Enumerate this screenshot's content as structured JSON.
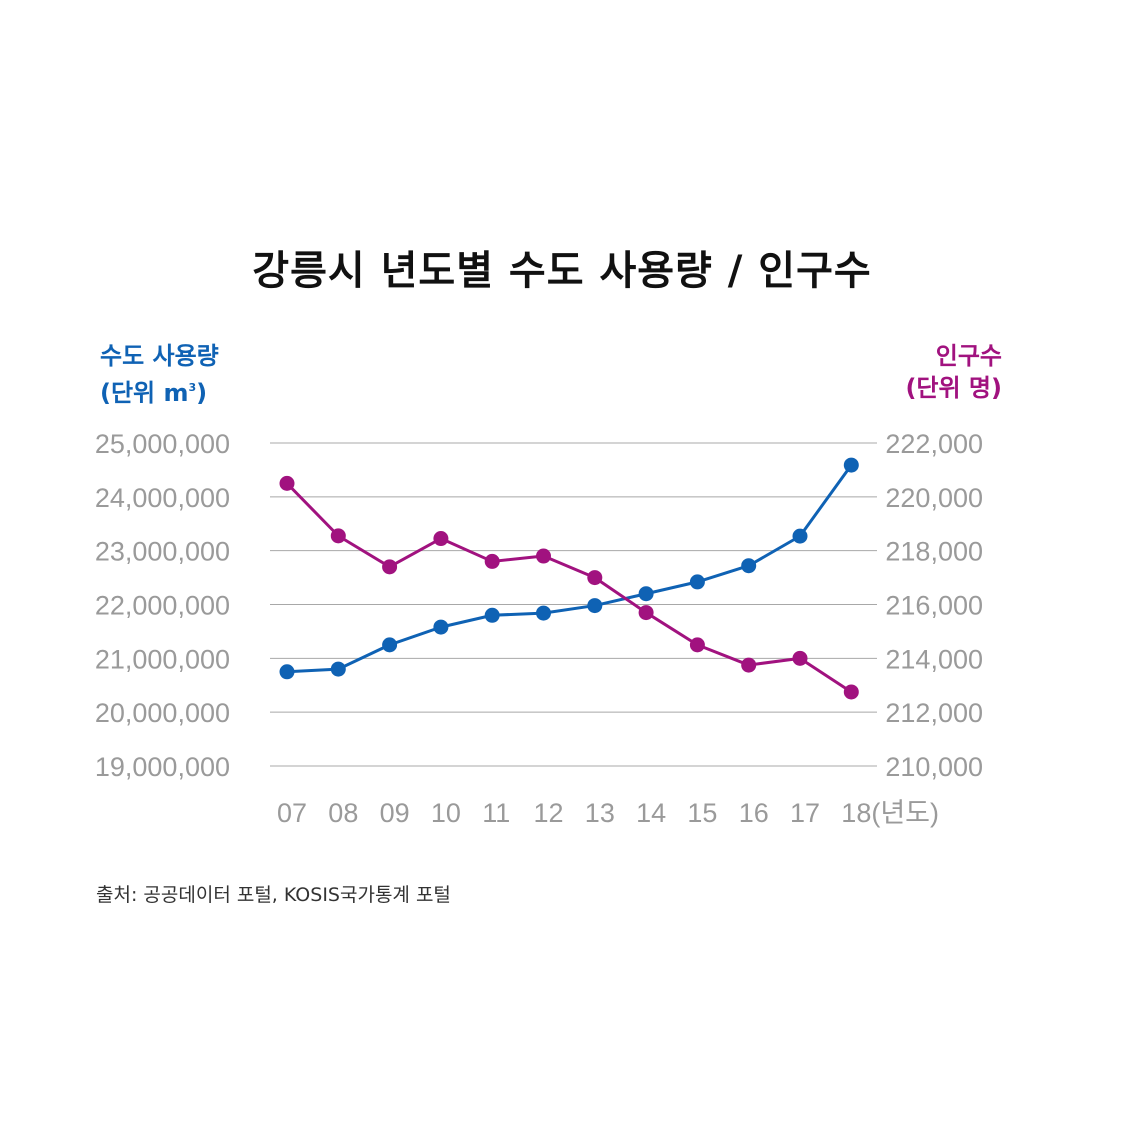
{
  "chart_data": {
    "type": "line",
    "title": "강릉시 년도별 수도 사용량 / 인구수",
    "categories": [
      "07",
      "08",
      "09",
      "10",
      "11",
      "12",
      "13",
      "14",
      "15",
      "16",
      "17",
      "18(년도)"
    ],
    "left_axis": {
      "title_line1": "수도 사용량",
      "title_line2_prefix": "(단위 m",
      "title_line2_sup": "3",
      "title_line2_suffix": ")",
      "color": "#0f62b4",
      "ylim": [
        19000000,
        25000000
      ],
      "ticks": [
        25000000,
        24000000,
        23000000,
        22000000,
        21000000,
        20000000,
        19000000
      ],
      "tick_labels": [
        "25,000,000",
        "24,000,000",
        "23,000,000",
        "22,000,000",
        "21,000,000",
        "20,000,000",
        "19,000,000"
      ]
    },
    "right_axis": {
      "title_line1": "인구수",
      "title_line2": "(단위 명)",
      "color": "#a1127f",
      "ylim": [
        210000,
        222000
      ],
      "ticks": [
        222000,
        220000,
        218000,
        216000,
        214000,
        212000,
        210000
      ],
      "tick_labels": [
        "222,000",
        "220,000",
        "218,000",
        "216,000",
        "214,000",
        "212,000",
        "210,000"
      ]
    },
    "series": [
      {
        "name": "수도 사용량",
        "axis": "left",
        "color": "#0f62b4",
        "values": [
          20750000,
          20800000,
          21250000,
          21580000,
          21800000,
          21840000,
          21980000,
          22200000,
          22420000,
          22720000,
          23270000,
          24590000
        ]
      },
      {
        "name": "인구수",
        "axis": "right",
        "color": "#a1127f",
        "values": [
          220500,
          218550,
          217400,
          218450,
          217600,
          217800,
          217000,
          215700,
          214500,
          213750,
          214000,
          212750
        ]
      }
    ],
    "grid": true
  },
  "source": "출처: 공공데이터 포털, KOSIS국가통계 포털"
}
